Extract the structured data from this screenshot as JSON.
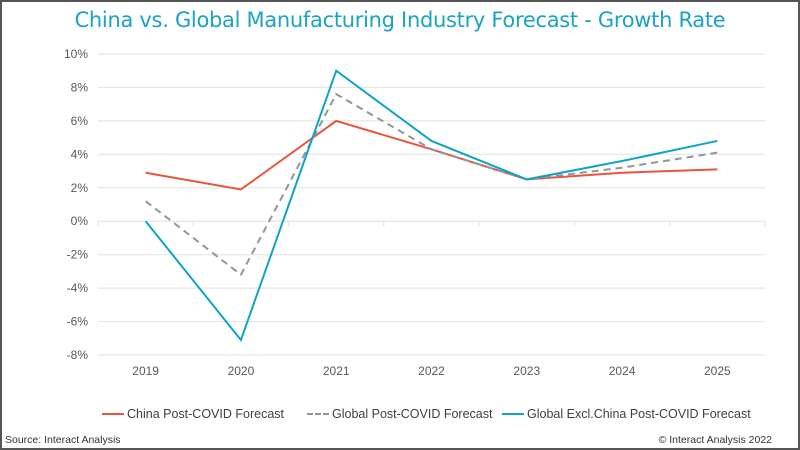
{
  "chart_data": {
    "type": "line",
    "title": "China vs. Global Manufacturing Industry Forecast - Growth Rate",
    "xlabel": "",
    "ylabel": "",
    "categories": [
      "2019",
      "2020",
      "2021",
      "2022",
      "2023",
      "2024",
      "2025"
    ],
    "ylim": [
      -8,
      10
    ],
    "yticks": [
      10,
      8,
      6,
      4,
      2,
      0,
      -2,
      -4,
      -6,
      -8
    ],
    "ytick_labels": [
      "10%",
      "8%",
      "6%",
      "4%",
      "2%",
      "0%",
      "-2%",
      "-4%",
      "-6%",
      "-8%"
    ],
    "grid": true,
    "legend_position": "bottom",
    "series": [
      {
        "name": "China Post-COVID Forecast",
        "color": "#e8553e",
        "style": "solid",
        "values": [
          2.9,
          1.9,
          6.0,
          4.3,
          2.5,
          2.9,
          3.1
        ]
      },
      {
        "name": "Global Post-COVID Forecast",
        "color": "#939598",
        "style": "dashed",
        "values": [
          1.2,
          -3.2,
          7.6,
          4.3,
          2.5,
          3.2,
          4.1
        ]
      },
      {
        "name": "Global Excl.China Post-COVID Forecast",
        "color": "#0fa3c7",
        "style": "solid",
        "values": [
          0.0,
          -7.1,
          9.0,
          4.8,
          2.5,
          3.6,
          4.8
        ]
      }
    ]
  },
  "footer": {
    "source": "Source: Interact Analysis",
    "copyright": "© Interact Analysis 2022"
  }
}
